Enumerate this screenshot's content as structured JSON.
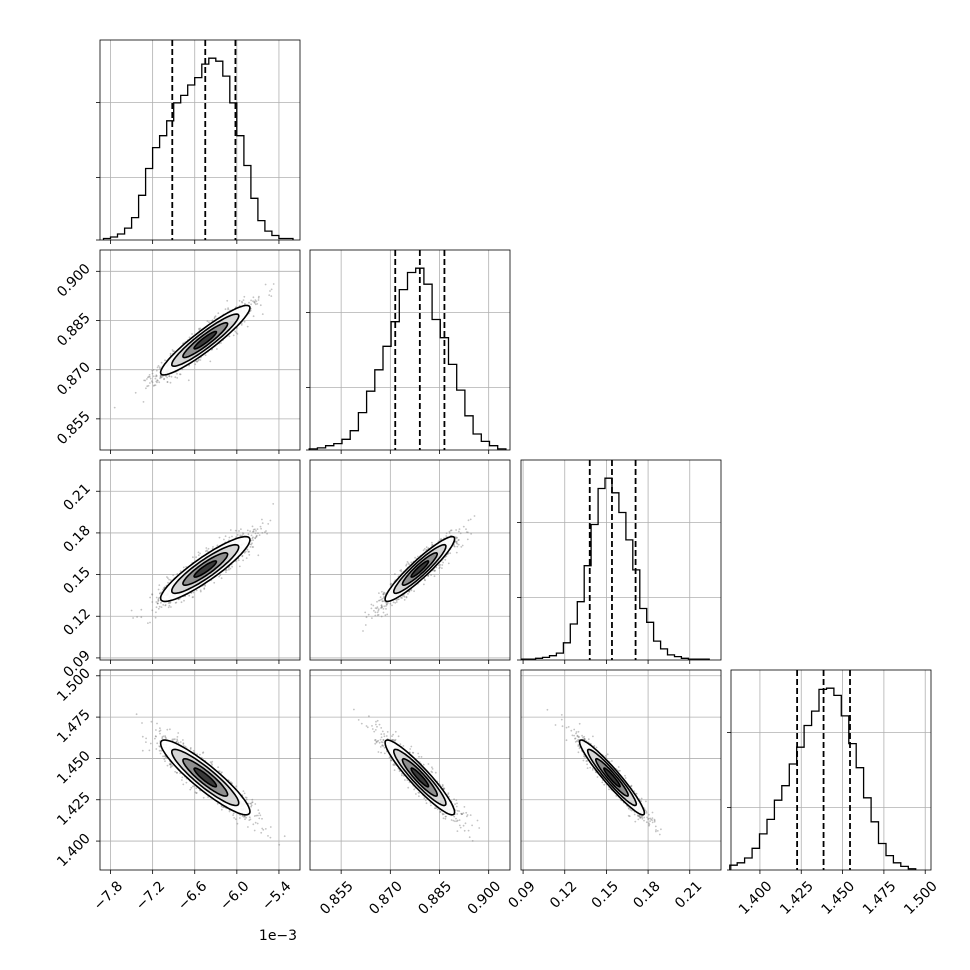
{
  "chart_data": {
    "type": "corner",
    "parameters": [
      {
        "range": [
          -7.95,
          -5.1
        ],
        "ticks": [
          -7.8,
          -7.2,
          -6.6,
          -6.0,
          -5.4
        ],
        "tick_labels": [
          "−7.8",
          "−7.2",
          "−6.6",
          "−6.0",
          "−5.4"
        ],
        "offset_label": "1e−3",
        "quantiles": [
          -6.92,
          -6.45,
          -6.02
        ]
      },
      {
        "range": [
          0.8455,
          0.9065
        ],
        "ticks": [
          0.855,
          0.87,
          0.885,
          0.9
        ],
        "tick_labels": [
          "0.855",
          "0.870",
          "0.885",
          "0.900"
        ],
        "quantiles": [
          0.8715,
          0.879,
          0.8865
        ]
      },
      {
        "range": [
          0.0885,
          0.2325
        ],
        "ticks": [
          0.09,
          0.12,
          0.15,
          0.18,
          0.21
        ],
        "tick_labels": [
          "0.09",
          "0.12",
          "0.15",
          "0.18",
          "0.21"
        ],
        "quantiles": [
          0.138,
          0.154,
          0.171
        ]
      },
      {
        "range": [
          1.3825,
          1.5035
        ],
        "ticks": [
          1.4,
          1.425,
          1.45,
          1.475,
          1.5
        ],
        "tick_labels": [
          "1.400",
          "1.425",
          "1.450",
          "1.475",
          "1.500"
        ],
        "quantiles": [
          1.4225,
          1.4385,
          1.4545
        ]
      }
    ],
    "histograms": [
      {
        "centers": [
          -7.85,
          -7.75,
          -7.65,
          -7.55,
          -7.45,
          -7.35,
          -7.25,
          -7.15,
          -7.05,
          -6.95,
          -6.85,
          -6.75,
          -6.65,
          -6.55,
          -6.45,
          -6.35,
          -6.25,
          -6.15,
          -6.05,
          -5.95,
          -5.85,
          -5.75,
          -5.65,
          -5.55,
          -5.45,
          -5.35,
          -5.25
        ],
        "counts": [
          1,
          2,
          4,
          8,
          15,
          30,
          48,
          62,
          70,
          80,
          92,
          97,
          104,
          109,
          118,
          122,
          120,
          110,
          92,
          70,
          50,
          28,
          13,
          6,
          3,
          1,
          1
        ]
      },
      {
        "centers": [
          0.8465,
          0.849,
          0.8515,
          0.854,
          0.8565,
          0.859,
          0.8615,
          0.864,
          0.8665,
          0.869,
          0.8715,
          0.874,
          0.8765,
          0.879,
          0.8815,
          0.884,
          0.8865,
          0.889,
          0.8915,
          0.894,
          0.8965,
          0.899,
          0.9015,
          0.904
        ],
        "counts": [
          1,
          2,
          4,
          6,
          10,
          18,
          35,
          55,
          75,
          97,
          120,
          150,
          166,
          170,
          155,
          122,
          105,
          80,
          56,
          32,
          15,
          8,
          4,
          1
        ]
      },
      {
        "centers": [
          0.0915,
          0.0965,
          0.1015,
          0.1065,
          0.1115,
          0.1165,
          0.1215,
          0.1265,
          0.1315,
          0.1365,
          0.1415,
          0.1465,
          0.1515,
          0.1565,
          0.1615,
          0.1665,
          0.1715,
          0.1765,
          0.1815,
          0.1865,
          0.1915,
          0.1965,
          0.2015,
          0.2065,
          0.2115,
          0.2165,
          0.2215
        ],
        "counts": [
          1,
          1,
          2,
          3,
          5,
          8,
          20,
          42,
          68,
          110,
          158,
          200,
          212,
          195,
          172,
          140,
          105,
          60,
          44,
          22,
          13,
          6,
          4,
          2,
          1,
          1,
          1
        ]
      },
      {
        "centers": [
          1.384,
          1.3885,
          1.393,
          1.3975,
          1.402,
          1.4065,
          1.411,
          1.4155,
          1.42,
          1.4245,
          1.429,
          1.4335,
          1.438,
          1.4425,
          1.447,
          1.4515,
          1.456,
          1.4605,
          1.465,
          1.4695,
          1.474,
          1.4785,
          1.483,
          1.4875,
          1.492
        ],
        "counts": [
          4,
          6,
          10,
          18,
          30,
          42,
          58,
          70,
          88,
          102,
          120,
          132,
          150,
          151,
          145,
          128,
          105,
          85,
          60,
          40,
          22,
          12,
          6,
          3,
          1
        ]
      }
    ],
    "correlations": [
      {
        "row": 1,
        "col": 0,
        "rho": 0.93
      },
      {
        "row": 2,
        "col": 0,
        "rho": 0.9
      },
      {
        "row": 2,
        "col": 1,
        "rho": 0.93
      },
      {
        "row": 3,
        "col": 0,
        "rho": -0.91
      },
      {
        "row": 3,
        "col": 1,
        "rho": -0.93
      },
      {
        "row": 3,
        "col": 2,
        "rho": -0.95
      }
    ],
    "grid": true,
    "title": "",
    "xlabel": "",
    "ylabel": ""
  }
}
